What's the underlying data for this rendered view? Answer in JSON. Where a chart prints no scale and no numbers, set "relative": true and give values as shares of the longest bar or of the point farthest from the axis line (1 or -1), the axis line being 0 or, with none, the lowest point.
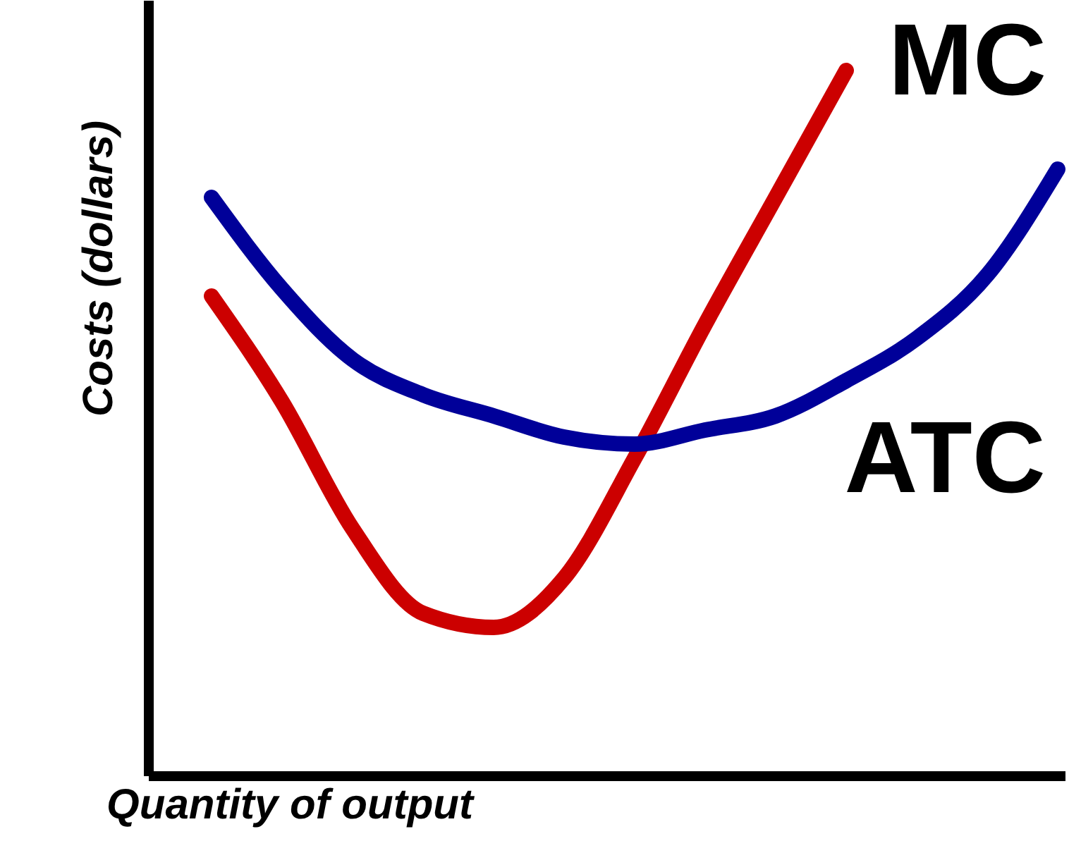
{
  "chart_data": {
    "type": "line",
    "xlabel": "Quantity of output",
    "ylabel": "Costs (dollars)",
    "relative": true,
    "grid": false,
    "line_style": "solid",
    "categories": [
      null,
      null,
      null,
      null,
      null,
      null,
      null,
      null,
      null,
      null,
      null,
      null,
      null
    ],
    "series": [
      {
        "name": "MC",
        "color": "#cc0000",
        "values": [
          0.68,
          0.53,
          0.35,
          0.23,
          0.21,
          0.28,
          0.45,
          0.64,
          0.82,
          1,
          null,
          null,
          null
        ]
      },
      {
        "name": "ATC",
        "color": "#000099",
        "values": [
          0.82,
          0.69,
          0.59,
          0.54,
          0.51,
          0.48,
          0.47,
          0.49,
          0.51,
          0.56,
          0.62,
          0.71,
          0.86
        ]
      }
    ]
  }
}
